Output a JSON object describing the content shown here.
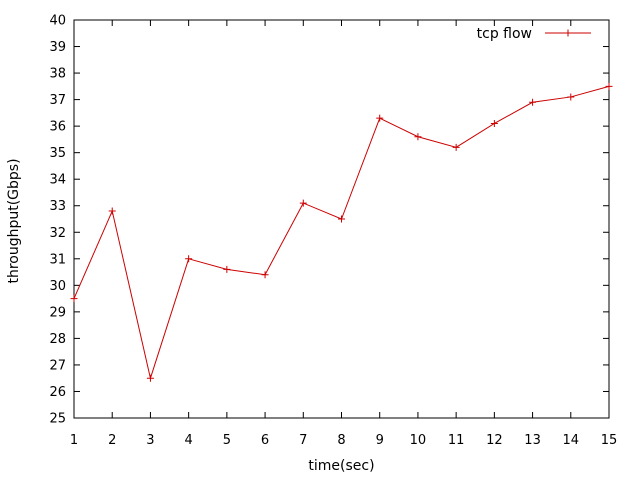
{
  "chart_data": {
    "type": "line",
    "title": "",
    "xlabel": "time(sec)",
    "ylabel": "throughput(Gbps)",
    "xlim": [
      1,
      15
    ],
    "ylim": [
      25,
      40
    ],
    "xticks": [
      1,
      2,
      3,
      4,
      5,
      6,
      7,
      8,
      9,
      10,
      11,
      12,
      13,
      14,
      15
    ],
    "yticks": [
      25,
      26,
      27,
      28,
      29,
      30,
      31,
      32,
      33,
      34,
      35,
      36,
      37,
      38,
      39,
      40
    ],
    "grid": false,
    "legend_position": "top-right",
    "series": [
      {
        "name": "tcp flow",
        "color": "#cc0000",
        "marker": "plus",
        "x": [
          1,
          2,
          3,
          4,
          5,
          6,
          7,
          8,
          9,
          10,
          11,
          12,
          13,
          14,
          15
        ],
        "y": [
          29.5,
          32.8,
          26.5,
          31.0,
          30.6,
          30.4,
          33.1,
          32.5,
          36.3,
          35.6,
          35.2,
          36.1,
          36.9,
          37.1,
          37.5
        ]
      }
    ]
  }
}
